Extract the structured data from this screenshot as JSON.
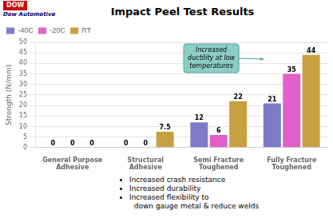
{
  "chart_data": {
    "type": "bar",
    "title": "Impact Peel Test Results",
    "ylabel": "Strength (N/mm)",
    "categories": [
      "General Purpose\nAdhesive",
      "Structural\nAdhesive",
      "Semi Fracture\nToughened",
      "Fully Fracture\nToughened"
    ],
    "series": [
      {
        "name": "-40C",
        "color": "#7B7BC8",
        "values": [
          0,
          0,
          12,
          21
        ]
      },
      {
        "name": "-20C",
        "color": "#E060C8",
        "values": [
          0,
          0,
          6,
          35
        ]
      },
      {
        "name": "RT",
        "color": "#C8A040",
        "values": [
          0,
          7.5,
          22,
          44
        ]
      }
    ],
    "ylim": [
      0,
      50
    ],
    "yticks": [
      0,
      5,
      10,
      15,
      20,
      25,
      30,
      35,
      40,
      45,
      50
    ],
    "grid": true,
    "legend": "upper left",
    "data_labels": true,
    "annotations": [
      "DOW",
      "Dow Automotive",
      "Increased\nductility at low\ntemperatures",
      "Increased crash resistance",
      "Increased durability",
      "Increased flexibility to\n  down gauge metal & reduce welds"
    ]
  }
}
